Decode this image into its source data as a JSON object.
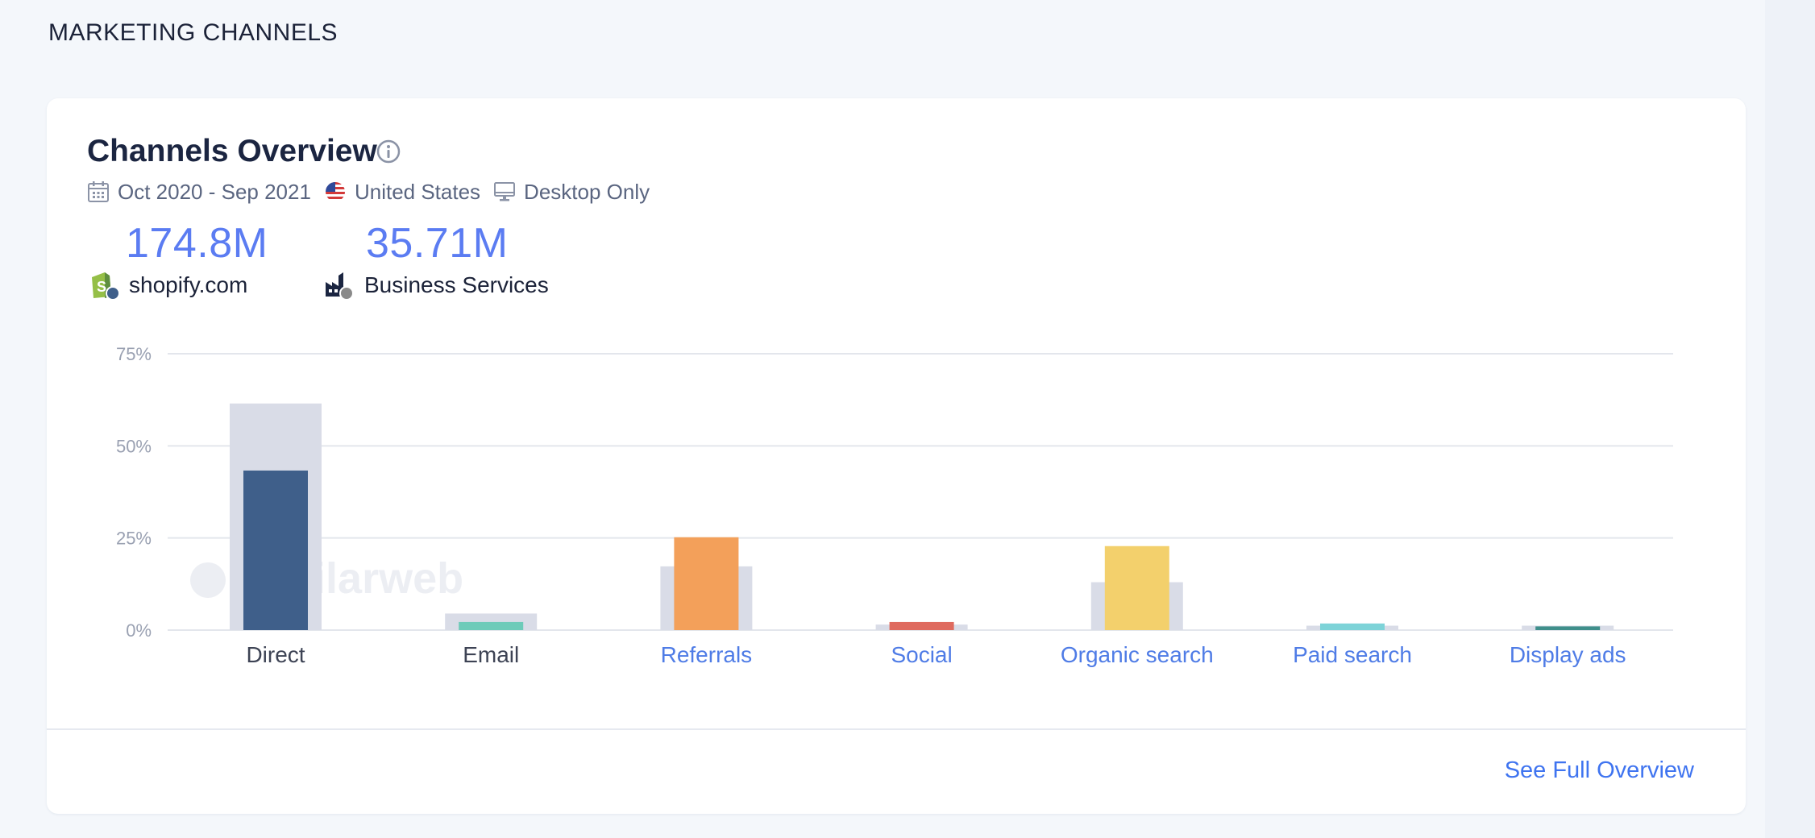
{
  "section_title": "MARKETING CHANNELS",
  "card": {
    "title": "Channels Overview",
    "info_icon": "info-circle-icon",
    "meta": {
      "date_range": "Oct 2020 - Sep 2021",
      "country": "United States",
      "device": "Desktop Only",
      "icons": [
        "calendar-icon",
        "us-flag-icon",
        "desktop-monitor-icon"
      ]
    },
    "metrics": [
      {
        "value": "174.8M",
        "label": "shopify.com",
        "icon": "shopify-logo-icon",
        "dot_color": "#3f5f8a"
      },
      {
        "value": "35.71M",
        "label": "Business Services",
        "icon": "industry-factory-icon",
        "dot_color": "#8a8a8a"
      }
    ],
    "watermark": "similarweb",
    "footer_link": "See Full Overview"
  },
  "chart_data": {
    "type": "bar",
    "ylim": [
      0,
      75
    ],
    "yticks": [
      "0%",
      "25%",
      "50%",
      "75%"
    ],
    "ytick_values": [
      0,
      25,
      50,
      75
    ],
    "categories": [
      "Direct",
      "Email",
      "Referrals",
      "Social",
      "Organic search",
      "Paid search",
      "Display ads"
    ],
    "category_link": [
      false,
      false,
      true,
      true,
      true,
      true,
      true
    ],
    "series": [
      {
        "values": [
          61.5,
          4.5,
          17.3,
          1.5,
          13.0,
          1.2,
          1.2
        ],
        "color": "#d9dce7"
      },
      {
        "values": [
          43.3,
          2.2,
          25.2,
          2.2,
          22.8,
          1.8,
          1.0
        ],
        "colors": [
          "#3f5f8a",
          "#6dcbb9",
          "#f3a05a",
          "#df6a5e",
          "#f3d06c",
          "#7dd3d8",
          "#3f8f8b"
        ]
      }
    ],
    "grid": true,
    "legend": "none"
  }
}
